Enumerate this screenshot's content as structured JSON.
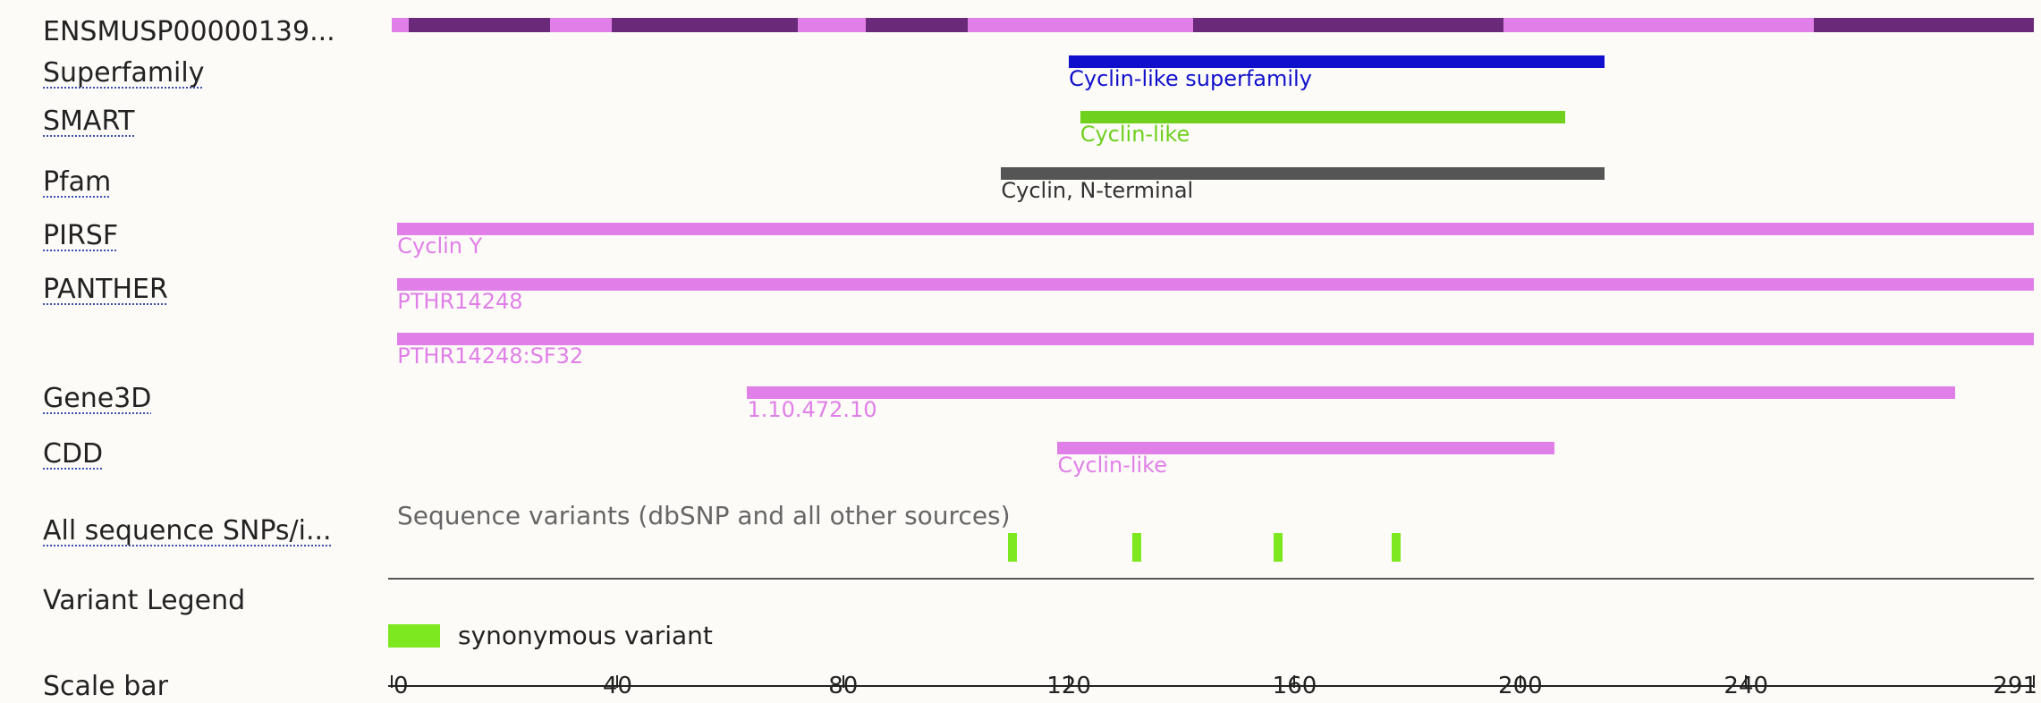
{
  "tracks": {
    "protein": {
      "label": "ENSMUSP00000139..."
    },
    "superfamily": {
      "label": "Superfamily",
      "feature": {
        "name": "Cyclin-like superfamily",
        "start": 120,
        "end": 215,
        "color": "#1010cc",
        "text_color": "#1010cc"
      }
    },
    "smart": {
      "label": "SMART",
      "feature": {
        "name": "Cyclin-like",
        "start": 122,
        "end": 208,
        "color": "#6fd01e",
        "text_color": "#6fd01e"
      }
    },
    "pfam": {
      "label": "Pfam",
      "feature": {
        "name": "Cyclin, N-terminal",
        "start": 108,
        "end": 215,
        "color": "#555555",
        "text_color": "#333333"
      }
    },
    "pirsf": {
      "label": "PIRSF",
      "feature": {
        "name": "Cyclin Y",
        "start": 1,
        "end": 291,
        "color": "#e07fe8",
        "text_color": "#e07fe8"
      }
    },
    "panther": {
      "label": "PANTHER",
      "features": [
        {
          "name": "PTHR14248",
          "start": 1,
          "end": 291,
          "color": "#e07fe8",
          "text_color": "#e07fe8"
        },
        {
          "name": "PTHR14248:SF32",
          "start": 1,
          "end": 291,
          "color": "#e07fe8",
          "text_color": "#e07fe8"
        }
      ]
    },
    "gene3d": {
      "label": "Gene3D",
      "feature": {
        "name": "1.10.472.10",
        "start": 63,
        "end": 277,
        "color": "#e07fe8",
        "text_color": "#e07fe8"
      }
    },
    "cdd": {
      "label": "CDD",
      "feature": {
        "name": "Cyclin-like",
        "start": 118,
        "end": 206,
        "color": "#e07fe8",
        "text_color": "#e07fe8"
      }
    },
    "snps": {
      "label": "All sequence SNPs/i...",
      "caption": "Sequence variants (dbSNP and all other sources)",
      "positions": [
        110,
        132,
        157,
        178
      ],
      "color": "#7de81f"
    },
    "legend": {
      "label": "Variant Legend",
      "item": "synonymous variant",
      "color": "#7de81f"
    },
    "scale": {
      "label": "Scale bar",
      "ticks": [
        "0",
        "40",
        "80",
        "120",
        "160",
        "200",
        "240",
        "291"
      ],
      "max": 291
    }
  },
  "protein_segments": [
    {
      "start": 0,
      "end": 3,
      "color": "#e07fe8"
    },
    {
      "start": 3,
      "end": 28,
      "color": "#6a2a79"
    },
    {
      "start": 28,
      "end": 39,
      "color": "#e07fe8"
    },
    {
      "start": 39,
      "end": 72,
      "color": "#6a2a79"
    },
    {
      "start": 72,
      "end": 84,
      "color": "#e07fe8"
    },
    {
      "start": 84,
      "end": 102,
      "color": "#6a2a79"
    },
    {
      "start": 102,
      "end": 142,
      "color": "#e07fe8"
    },
    {
      "start": 142,
      "end": 197,
      "color": "#6a2a79"
    },
    {
      "start": 197,
      "end": 252,
      "color": "#e07fe8"
    },
    {
      "start": 252,
      "end": 291,
      "color": "#6a2a79"
    }
  ]
}
